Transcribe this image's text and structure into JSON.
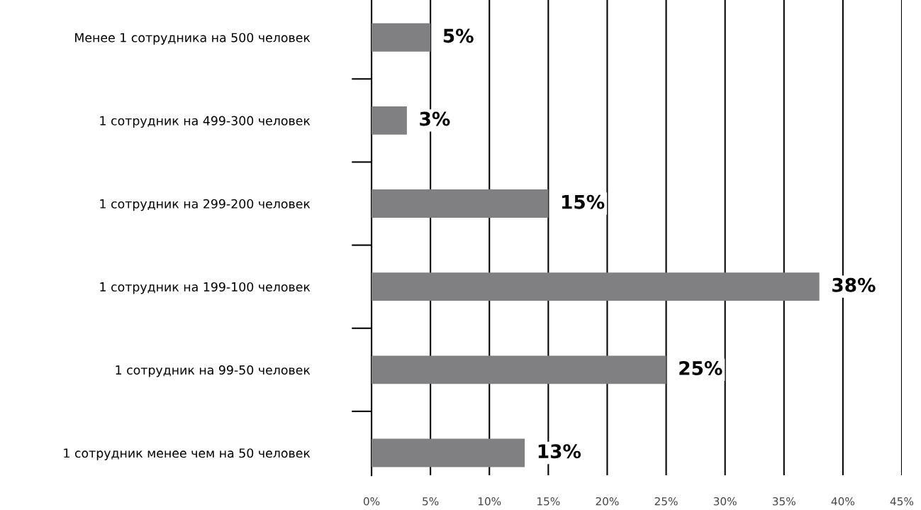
{
  "chart_data": {
    "type": "bar",
    "orientation": "horizontal",
    "categories": [
      "Менее 1 сотрудника на 500 человек",
      "1 сотрудник на 499-300 человек",
      "1 сотрудник на 299-200 человек",
      "1 сотрудник на 199-100 человек",
      "1 сотрудник на 99-50 человек",
      "1 сотрудник менее чем на 50 человек"
    ],
    "values": [
      5,
      3,
      15,
      38,
      25,
      13
    ],
    "value_labels": [
      "5%",
      "3%",
      "15%",
      "38%",
      "25%",
      "13%"
    ],
    "color": "#808083",
    "xlim": [
      0,
      45
    ],
    "xticks": [
      {
        "value": 0,
        "label": "0%"
      },
      {
        "value": 5,
        "label": "5%"
      },
      {
        "value": 10,
        "label": "10%"
      },
      {
        "value": 15,
        "label": "15%"
      },
      {
        "value": 20,
        "label": "20%"
      },
      {
        "value": 25,
        "label": "25%"
      },
      {
        "value": 30,
        "label": "30%"
      },
      {
        "value": 35,
        "label": "35%"
      },
      {
        "value": 40,
        "label": "40%"
      },
      {
        "value": 45,
        "label": "45%"
      }
    ],
    "grid": "x",
    "legend": false
  }
}
